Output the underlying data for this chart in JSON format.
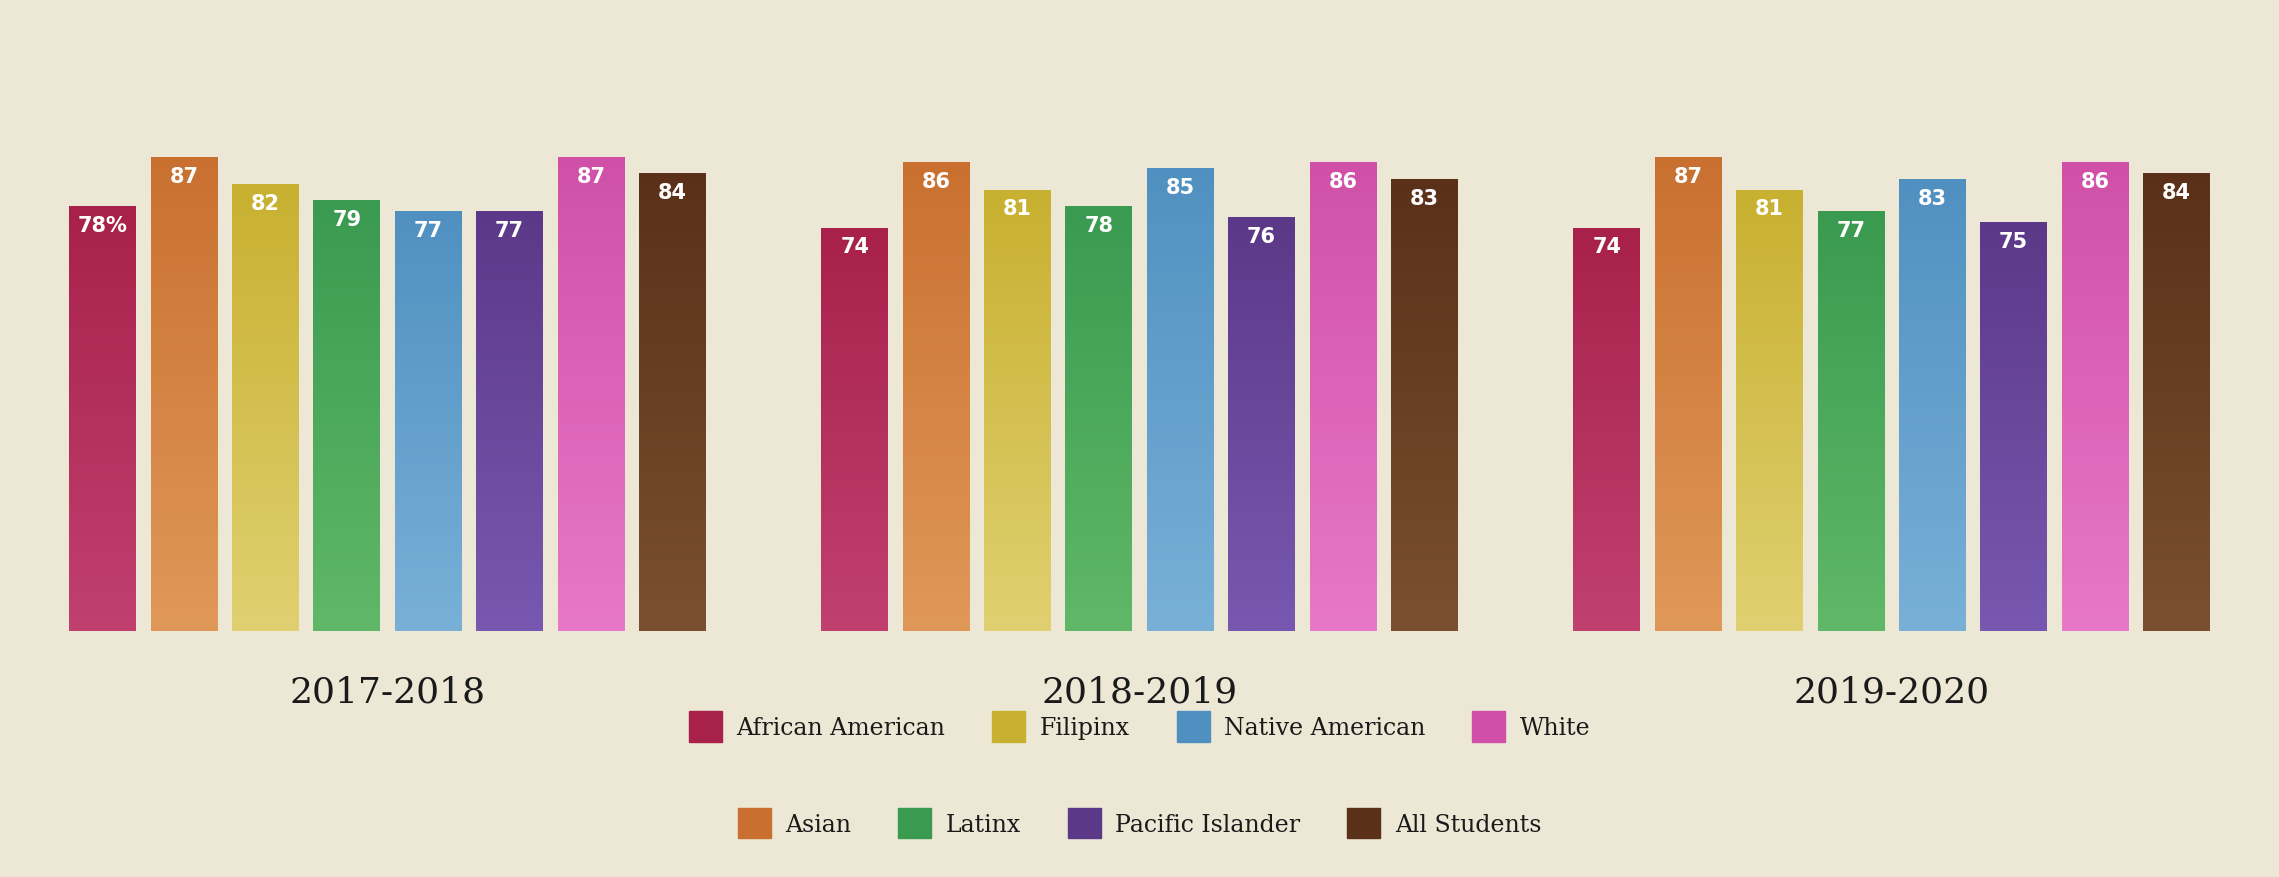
{
  "years": [
    "2017-2018",
    "2018-2019",
    "2019-2020"
  ],
  "bar_order": [
    "African American",
    "Asian",
    "Filipinx",
    "Latinx",
    "Native American",
    "Pacific Islander",
    "White",
    "All Students"
  ],
  "bar_colors_top": [
    "#a8214a",
    "#c97030",
    "#c8b030",
    "#3a9a50",
    "#5090c0",
    "#5c3888",
    "#d050a8",
    "#5a3018"
  ],
  "bar_colors_bottom": [
    "#c04070",
    "#e09858",
    "#e0d070",
    "#60b868",
    "#78b0d8",
    "#7858b0",
    "#e878c8",
    "#7a5030"
  ],
  "values": {
    "2017-2018": [
      78,
      87,
      82,
      79,
      77,
      77,
      87,
      84
    ],
    "2018-2019": [
      74,
      86,
      81,
      78,
      85,
      76,
      86,
      83
    ],
    "2019-2020": [
      74,
      87,
      81,
      77,
      83,
      75,
      86,
      84
    ]
  },
  "background_color": "#ede8d5",
  "bar_text_color": "#ffffff",
  "year_label_fontsize": 26,
  "value_fontsize": 15,
  "legend_fontsize": 17,
  "legend_labels": [
    "African American",
    "Filipinx",
    "Native American",
    "White",
    "Asian",
    "Latinx",
    "Pacific Islander",
    "All Students"
  ],
  "legend_colors": [
    "#a8214a",
    "#c8b030",
    "#5090c0",
    "#d050a8",
    "#c97030",
    "#3a9a50",
    "#5c3888",
    "#5a3018"
  ]
}
